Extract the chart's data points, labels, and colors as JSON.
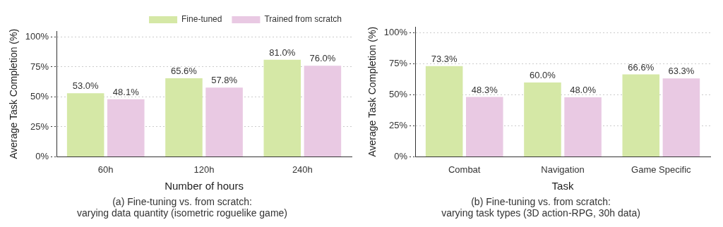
{
  "chart_data": [
    {
      "type": "bar",
      "xlabel": "Number of hours",
      "ylabel": "Average Task Completion (%)",
      "categories": [
        "60h",
        "120h",
        "240h"
      ],
      "series": [
        {
          "name": "Fine-tuned",
          "color": "#d5e8a6",
          "values": [
            53.0,
            65.6,
            81.0
          ],
          "value_labels": [
            "53.0%",
            "65.6%",
            "81.0%"
          ]
        },
        {
          "name": "Trained from scratch",
          "color": "#e9c9e3",
          "values": [
            48.1,
            57.8,
            76.0
          ],
          "value_labels": [
            "48.1%",
            "57.8%",
            "76.0%"
          ]
        }
      ],
      "ylim": [
        0,
        105
      ],
      "yticks": [
        {
          "value": 0,
          "label": "0%"
        },
        {
          "value": 25,
          "label": "25%"
        },
        {
          "value": 50,
          "label": "50%"
        },
        {
          "value": 75,
          "label": "75%"
        },
        {
          "value": 100,
          "label": "100%"
        }
      ],
      "grid": "y",
      "legend": "top right",
      "annotations": [
        "(a) Fine-tuning vs. from scratch:\nvarying data quantity (isometric roguelike game)"
      ]
    },
    {
      "type": "bar",
      "xlabel": "Task",
      "ylabel": "Average Task Completion (%)",
      "categories": [
        "Combat",
        "Navigation",
        "Game Specific"
      ],
      "series": [
        {
          "color": "#d5e8a6",
          "values": [
            73.3,
            60.0,
            66.6
          ],
          "value_labels": [
            "73.3%",
            "60.0%",
            "66.6%"
          ]
        },
        {
          "color": "#e9c9e3",
          "values": [
            48.3,
            48.0,
            63.3
          ],
          "value_labels": [
            "48.3%",
            "48.0%",
            "63.3%"
          ]
        }
      ],
      "ylim": [
        0,
        105
      ],
      "yticks": [
        {
          "value": 0,
          "label": "0%"
        },
        {
          "value": 25,
          "label": "25%"
        },
        {
          "value": 50,
          "label": "50%"
        },
        {
          "value": 75,
          "label": "75%"
        },
        {
          "value": 100,
          "label": "100%"
        }
      ],
      "grid": "y",
      "legend": false,
      "annotations": [
        "(b) Fine-tuning vs. from scratch:\nvarying task types (3D action-RPG, 30h data)"
      ]
    }
  ]
}
